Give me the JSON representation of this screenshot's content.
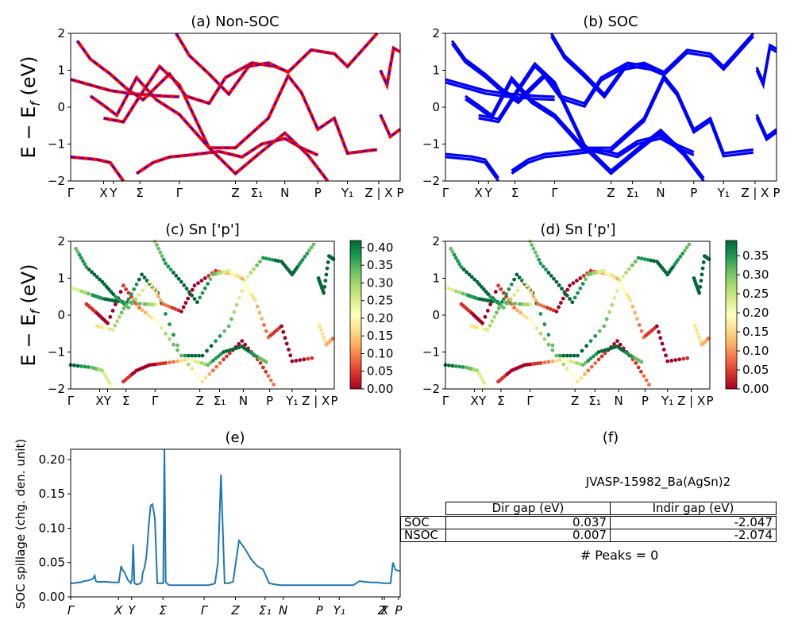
{
  "colors": {
    "red": "#ff0000",
    "blue": "#0000ff",
    "spill": "#1f77b4"
  },
  "band_ticks": [
    "Γ",
    "X",
    "Y",
    "Σ",
    "Γ",
    "Z",
    "Σ₁",
    "N",
    "P",
    "Y₁",
    "Z | X",
    "P"
  ],
  "chart_data": [
    {
      "type": "line",
      "title": "(a) Non-SOC",
      "ylabel": "E − E_f (eV)",
      "ylim": [
        -2,
        2
      ],
      "yticks": [
        "2",
        "1",
        "0",
        "−1",
        "−2"
      ],
      "series": [
        {
          "color": "#ff0000",
          "style": "solid"
        },
        {
          "color": "#0000ff",
          "style": "dashed"
        }
      ]
    },
    {
      "type": "line",
      "title": "(b) SOC",
      "ylim": [
        -2,
        2
      ],
      "yticks": [
        "2",
        "1",
        "0",
        "−1",
        "−2"
      ],
      "series": [
        {
          "color": "#0000ff",
          "style": "solid"
        }
      ]
    },
    {
      "type": "scatter",
      "title": "(c)  Sn ['p']",
      "ylabel": "E − E_f (eV)",
      "ylim": [
        -2,
        2
      ],
      "yticks": [
        "2",
        "1",
        "0",
        "−1",
        "−2"
      ],
      "colorbar": {
        "cmap": "RdYlGn",
        "range": [
          0.0,
          0.42
        ],
        "ticks": [
          "0.00",
          "0.05",
          "0.10",
          "0.15",
          "0.20",
          "0.25",
          "0.30",
          "0.35",
          "0.40"
        ]
      }
    },
    {
      "type": "scatter",
      "title": "(d) Sn ['p']",
      "ylim": [
        -2,
        2
      ],
      "yticks": [
        "2",
        "1",
        "0",
        "−1",
        "−2"
      ],
      "colorbar": {
        "cmap": "RdYlGn",
        "range": [
          0.0,
          0.39
        ],
        "ticks": [
          "0.00",
          "0.05",
          "0.10",
          "0.15",
          "0.20",
          "0.25",
          "0.30",
          "0.35"
        ]
      }
    },
    {
      "type": "line",
      "title": "(e)",
      "ylabel": "SOC spillage (chg. den. unit)",
      "ylim": [
        0,
        0.215
      ],
      "yticks": [
        "0.20",
        "0.15",
        "0.10",
        "0.05",
        "0.00"
      ],
      "xtick_labels": [
        "Γ",
        "X",
        "Y",
        "Σ",
        "Γ",
        "Z",
        "Σ₁",
        "N",
        "P",
        "Y₁",
        "Z",
        "X",
        "P"
      ],
      "x": [
        0,
        0.06,
        0.12,
        0.16,
        0.19,
        0.2,
        0.22,
        0.3,
        0.36,
        0.38,
        0.4,
        0.42,
        0.44,
        0.46,
        0.5,
        0.6,
        0.7,
        0.8,
        0.82,
        0.84,
        0.86,
        0.9,
        0.95,
        1.0,
        1.02,
        1.04,
        1.06,
        1.08,
        1.1,
        1.14,
        1.16,
        1.18,
        1.2,
        1.22,
        1.24,
        1.26,
        1.28,
        1.3,
        1.33,
        1.36,
        1.4,
        1.44,
        1.48,
        1.52,
        1.54,
        1.56,
        1.58,
        1.6,
        1.62,
        1.66,
        1.7,
        1.8,
        1.9,
        2.0,
        2.1,
        2.2,
        2.3,
        2.32,
        2.35,
        2.38,
        2.4,
        2.45,
        2.5,
        2.56,
        2.6,
        2.62,
        2.64,
        2.66,
        2.7,
        2.8,
        2.9,
        3.0,
        3.1,
        3.2,
        3.3,
        3.4,
        3.5,
        3.56,
        3.6,
        3.62,
        3.66,
        3.72,
        3.8,
        3.86,
        3.9,
        4.0,
        4.1,
        4.2,
        4.3,
        4.4,
        4.5,
        4.6,
        4.7,
        4.8,
        4.9,
        5.0,
        5.1,
        5.2,
        5.3,
        5.32,
        5.36,
        5.4,
        5.44,
        5.46,
        5.48
      ],
      "values": [
        0.02,
        0.02,
        0.021,
        0.021,
        0.022,
        0.022,
        0.023,
        0.024,
        0.026,
        0.028,
        0.031,
        0.023,
        0.022,
        0.022,
        0.022,
        0.022,
        0.021,
        0.021,
        0.033,
        0.045,
        0.04,
        0.035,
        0.025,
        0.02,
        0.025,
        0.077,
        0.02,
        0.019,
        0.018,
        0.019,
        0.02,
        0.022,
        0.036,
        0.04,
        0.048,
        0.06,
        0.08,
        0.105,
        0.133,
        0.135,
        0.115,
        0.02,
        0.02,
        0.02,
        0.02,
        0.215,
        0.022,
        0.02,
        0.018,
        0.017,
        0.017,
        0.017,
        0.017,
        0.017,
        0.017,
        0.017,
        0.017,
        0.018,
        0.018,
        0.019,
        0.02,
        0.05,
        0.178,
        0.02,
        0.02,
        0.02,
        0.02,
        0.021,
        0.022,
        0.082,
        0.07,
        0.055,
        0.045,
        0.04,
        0.02,
        0.018,
        0.017,
        0.017,
        0.017,
        0.017,
        0.017,
        0.017,
        0.017,
        0.017,
        0.017,
        0.017,
        0.017,
        0.017,
        0.017,
        0.017,
        0.017,
        0.017,
        0.017,
        0.023,
        0.022,
        0.021,
        0.021,
        0.02,
        0.02,
        0.02,
        0.05,
        0.04,
        0.038,
        0.038,
        0.038
      ]
    }
  ],
  "panel_f": {
    "title": "(f)",
    "id": "JVASP-15982_Ba(AgSn)2",
    "table": {
      "headers": [
        "Dir gap (eV)",
        "Indir gap (eV)"
      ],
      "rows": [
        {
          "label": "SOC",
          "dir": "0.037",
          "indir": "-2.047"
        },
        {
          "label": "NSOC",
          "dir": "0.007",
          "indir": "-2.074"
        }
      ]
    },
    "peaks": "# Peaks = 0"
  }
}
